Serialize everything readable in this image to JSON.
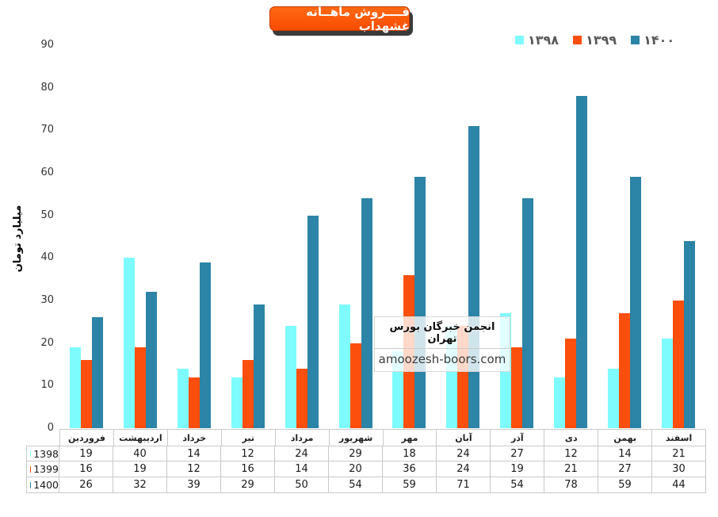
{
  "title": "فــــروش ماهــانه غشهداب",
  "y_axis": {
    "title": "میلیارد تومان"
  },
  "watermark": {
    "line1": "انجمن خبرگان بورس تهران",
    "line2": "amoozesh-boors.com"
  },
  "colors": {
    "series_1398": "#7dfbfd",
    "series_1399": "#fc4f0d",
    "series_1400": "#2c84a6",
    "title_banner": "#f84b00",
    "legend_text": "#595959",
    "table_border": "#c9c9c9"
  },
  "chart_data": {
    "type": "bar",
    "title": "فــــروش ماهــانه غشهداب",
    "ylabel": "میلیارد تومان",
    "ylim": [
      0,
      90
    ],
    "yticks": [
      0,
      10,
      20,
      30,
      40,
      50,
      60,
      70,
      80,
      90
    ],
    "grid": false,
    "legend_position": "top-right",
    "categories": [
      "فروردین",
      "اردیبهشت",
      "خرداد",
      "تیر",
      "مرداد",
      "شهریور",
      "مهر",
      "آبان",
      "آذر",
      "دی",
      "بهمن",
      "اسفند"
    ],
    "series": [
      {
        "name": "1398",
        "legend_label": "۱۳۹۸",
        "color": "#7dfbfd",
        "values": [
          19,
          40,
          14,
          12,
          24,
          29,
          18,
          24,
          27,
          12,
          14,
          21
        ]
      },
      {
        "name": "1399",
        "legend_label": "۱۳۹۹",
        "color": "#fc4f0d",
        "values": [
          16,
          19,
          12,
          16,
          14,
          20,
          36,
          24,
          19,
          21,
          27,
          30
        ]
      },
      {
        "name": "1400",
        "legend_label": "۱۴۰۰",
        "color": "#2c84a6",
        "values": [
          26,
          32,
          39,
          29,
          50,
          54,
          59,
          71,
          54,
          78,
          59,
          44
        ]
      }
    ]
  }
}
